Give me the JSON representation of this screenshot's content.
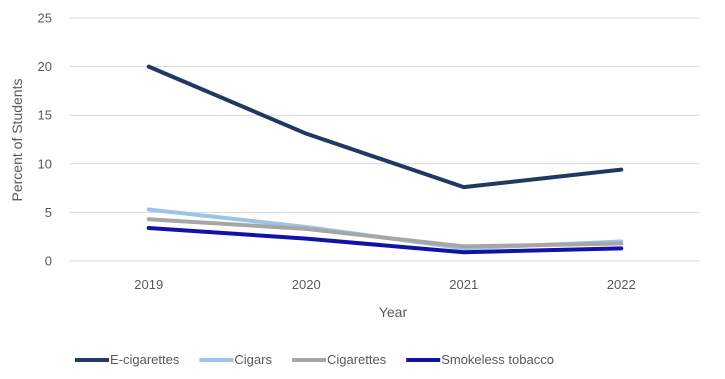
{
  "chart_data": {
    "type": "line",
    "title": "",
    "xlabel": "Year",
    "ylabel": "Percent of Students",
    "categories": [
      "2019",
      "2020",
      "2021",
      "2022"
    ],
    "ylim": [
      0,
      25
    ],
    "yticks": [
      0,
      5,
      10,
      15,
      20,
      25
    ],
    "grid": true,
    "legend_position": "bottom",
    "series": [
      {
        "name": "E-cigarettes",
        "values": [
          20.0,
          13.1,
          7.6,
          9.4
        ],
        "color": "#1f3864"
      },
      {
        "name": "Cigars",
        "values": [
          5.3,
          3.5,
          1.3,
          2.0
        ],
        "color": "#9dc3e6"
      },
      {
        "name": "Cigarettes",
        "values": [
          4.3,
          3.3,
          1.5,
          1.8
        ],
        "color": "#a6a6a6"
      },
      {
        "name": "Smokeless tobacco",
        "values": [
          3.4,
          2.3,
          0.9,
          1.3
        ],
        "color": "#1212a8"
      }
    ]
  }
}
